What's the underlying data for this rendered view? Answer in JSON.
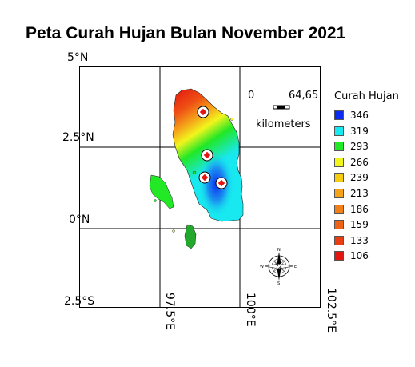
{
  "title": "Peta Curah Hujan Bulan November 2021",
  "lat_labels": [
    "5°N",
    "2.5°N",
    "0°N",
    "2.5°S"
  ],
  "lon_labels": [
    "97.5°E",
    "100°E",
    "102.5°E"
  ],
  "scale": {
    "start": "0",
    "end": "64,65",
    "unit": "kilometers"
  },
  "compass": {
    "n": "N",
    "s": "S",
    "e": "E",
    "w": "W"
  },
  "legend": {
    "title": "Curah Hujan",
    "items": [
      {
        "label": "346",
        "color": "#0a2cf0"
      },
      {
        "label": "319",
        "color": "#18e8ef"
      },
      {
        "label": "293",
        "color": "#22e826"
      },
      {
        "label": "266",
        "color": "#f2f51c"
      },
      {
        "label": "239",
        "color": "#f5cc10"
      },
      {
        "label": "213",
        "color": "#f5a41a"
      },
      {
        "label": "186",
        "color": "#f28018"
      },
      {
        "label": "159",
        "color": "#ee6315"
      },
      {
        "label": "133",
        "color": "#e93e13"
      },
      {
        "label": "106",
        "color": "#e41410"
      }
    ]
  }
}
